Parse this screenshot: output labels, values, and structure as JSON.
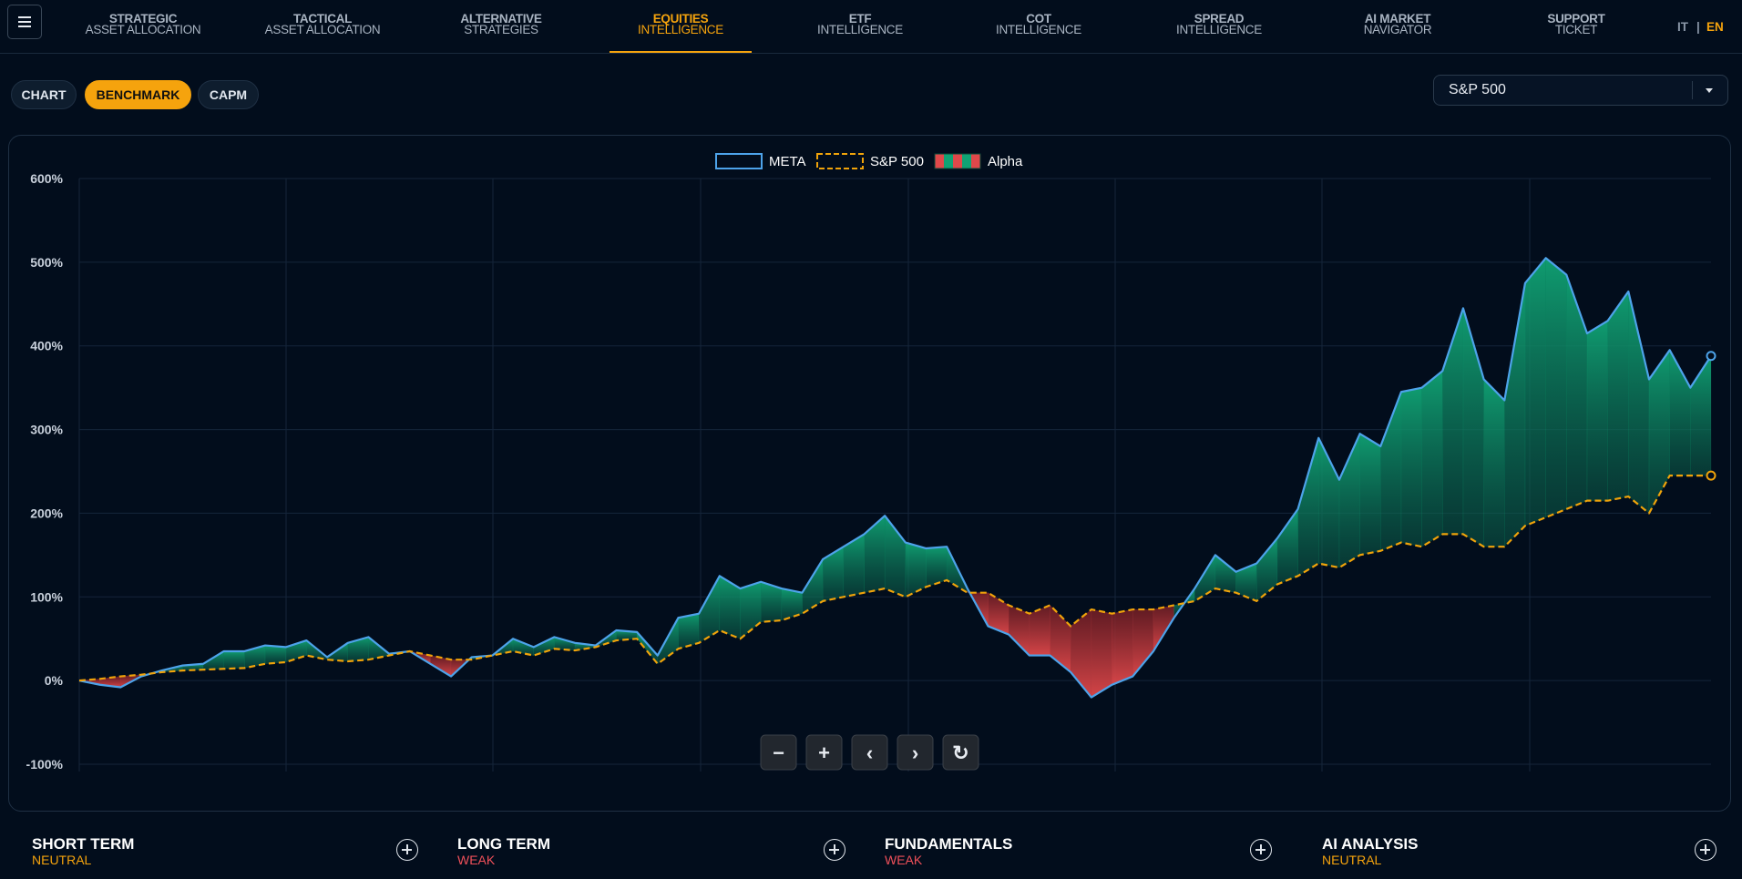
{
  "nav": {
    "items": [
      {
        "line1": "STRATEGIC",
        "line2": "ASSET ALLOCATION"
      },
      {
        "line1": "TACTICAL",
        "line2": "ASSET ALLOCATION"
      },
      {
        "line1": "ALTERNATIVE",
        "line2": "STRATEGIES"
      },
      {
        "line1": "EQUITIES",
        "line2": "INTELLIGENCE"
      },
      {
        "line1": "ETF",
        "line2": "INTELLIGENCE"
      },
      {
        "line1": "COT",
        "line2": "INTELLIGENCE"
      },
      {
        "line1": "SPREAD",
        "line2": "INTELLIGENCE"
      },
      {
        "line1": "AI MARKET",
        "line2": "NAVIGATOR"
      },
      {
        "line1": "SUPPORT",
        "line2": "TICKET"
      }
    ],
    "active": 3,
    "languages": [
      "IT",
      "EN"
    ],
    "separator": "|",
    "active_language": 1
  },
  "tabs": {
    "items": [
      "CHART",
      "BENCHMARK",
      "CAPM"
    ],
    "active": 1
  },
  "benchmark_select": "S&P 500",
  "chart_data": {
    "type": "line",
    "series": [
      {
        "name": "META",
        "color": "#4da3ea",
        "dashed": false,
        "values": [
          0,
          -5,
          -8,
          5,
          12,
          18,
          20,
          35,
          35,
          42,
          40,
          48,
          28,
          45,
          52,
          32,
          35,
          20,
          5,
          28,
          30,
          50,
          40,
          52,
          45,
          42,
          60,
          58,
          30,
          75,
          80,
          125,
          110,
          118,
          110,
          105,
          145,
          160,
          175,
          197,
          165,
          158,
          160,
          110,
          65,
          55,
          30,
          30,
          10,
          -20,
          -5,
          5,
          35,
          75,
          110,
          150,
          130,
          140,
          170,
          205,
          290,
          240,
          295,
          280,
          345,
          350,
          370,
          445,
          360,
          335,
          475,
          505,
          485,
          415,
          430,
          465,
          360,
          395,
          350,
          388
        ]
      },
      {
        "name": "S&P 500",
        "color": "#f0a30a",
        "dashed": true,
        "values": [
          0,
          2,
          5,
          7,
          10,
          12,
          13,
          14,
          15,
          20,
          22,
          30,
          25,
          23,
          25,
          30,
          35,
          30,
          25,
          25,
          30,
          35,
          30,
          38,
          36,
          40,
          48,
          50,
          20,
          38,
          45,
          60,
          50,
          70,
          72,
          80,
          95,
          100,
          105,
          110,
          100,
          112,
          120,
          105,
          105,
          90,
          80,
          90,
          65,
          85,
          80,
          85,
          85,
          90,
          95,
          110,
          105,
          95,
          115,
          125,
          140,
          135,
          150,
          155,
          165,
          160,
          175,
          175,
          160,
          160,
          185,
          195,
          205,
          215,
          215,
          220,
          200,
          245,
          245,
          245
        ]
      }
    ],
    "alpha": {
      "name": "Alpha",
      "positive_color": "#10a374",
      "negative_color": "#e0484a"
    },
    "ylim": [
      -100,
      600
    ],
    "yticks": [
      {
        "value": -100,
        "label": "-100%"
      },
      {
        "value": 0,
        "label": "0%"
      },
      {
        "value": 100,
        "label": "100%"
      },
      {
        "value": 200,
        "label": "200%"
      },
      {
        "value": 300,
        "label": "300%"
      },
      {
        "value": 400,
        "label": "400%"
      },
      {
        "value": 500,
        "label": "500%"
      },
      {
        "value": 600,
        "label": "600%"
      }
    ],
    "grid": true,
    "legend": "top"
  },
  "zoom_controls": [
    "−",
    "+",
    "‹",
    "›",
    "↻"
  ],
  "cards": [
    {
      "title": "SHORT TERM",
      "status": "NEUTRAL",
      "tone": "neutral"
    },
    {
      "title": "LONG TERM",
      "status": "WEAK",
      "tone": "weak"
    },
    {
      "title": "FUNDAMENTALS",
      "status": "WEAK",
      "tone": "weak"
    },
    {
      "title": "AI ANALYSIS",
      "status": "NEUTRAL",
      "tone": "neutral"
    }
  ]
}
